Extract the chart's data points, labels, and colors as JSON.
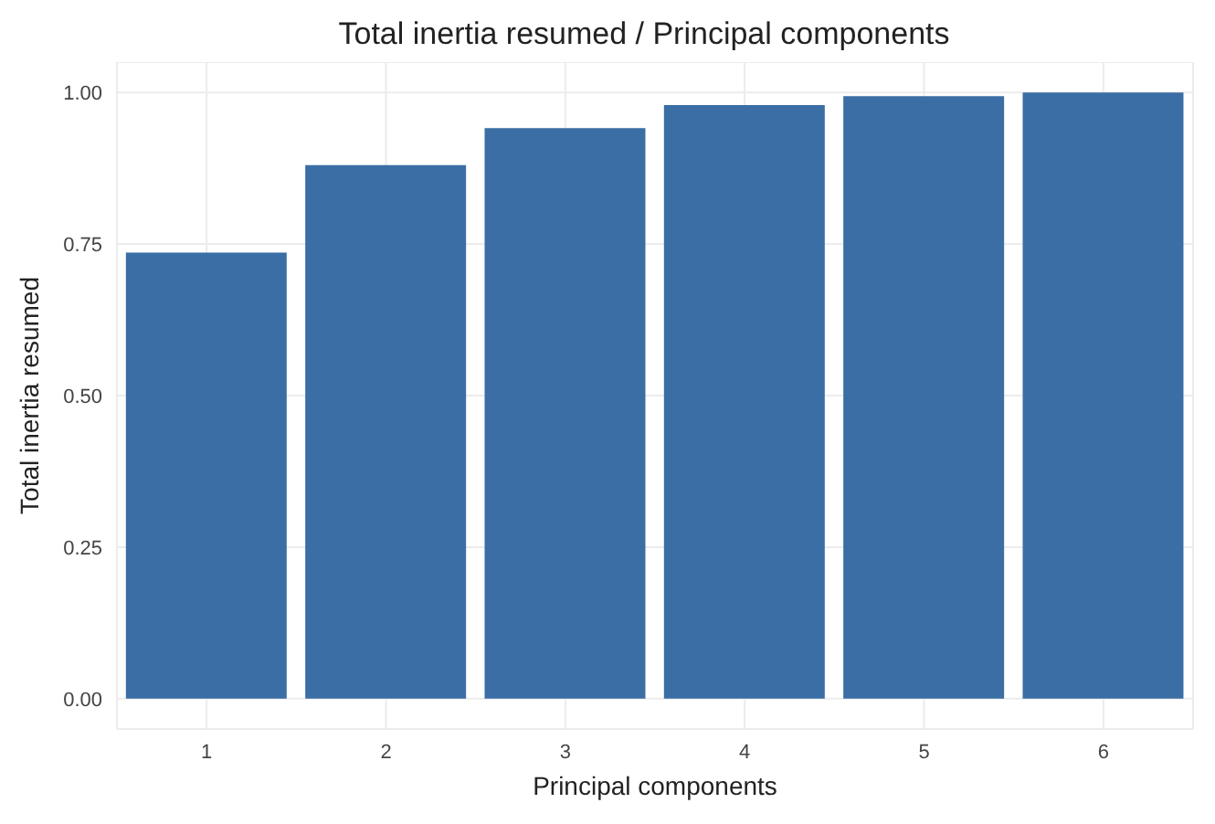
{
  "chart_data": {
    "type": "bar",
    "title": "Total inertia resumed / Principal components",
    "xlabel": "Principal components",
    "ylabel": "Total inertia resumed",
    "categories": [
      "1",
      "2",
      "3",
      "4",
      "5",
      "6"
    ],
    "values": [
      0.736,
      0.88,
      0.941,
      0.979,
      0.994,
      1.0
    ],
    "color": "#3a6ea5",
    "ylim": [
      -0.05,
      1.05
    ],
    "yticks": [
      {
        "value": 0,
        "label": "0.00"
      },
      {
        "value": 0.25,
        "label": "0.25"
      },
      {
        "value": 0.5,
        "label": "0.50"
      },
      {
        "value": 0.75,
        "label": "0.75"
      },
      {
        "value": 1,
        "label": "1.00"
      }
    ],
    "grid": true
  }
}
